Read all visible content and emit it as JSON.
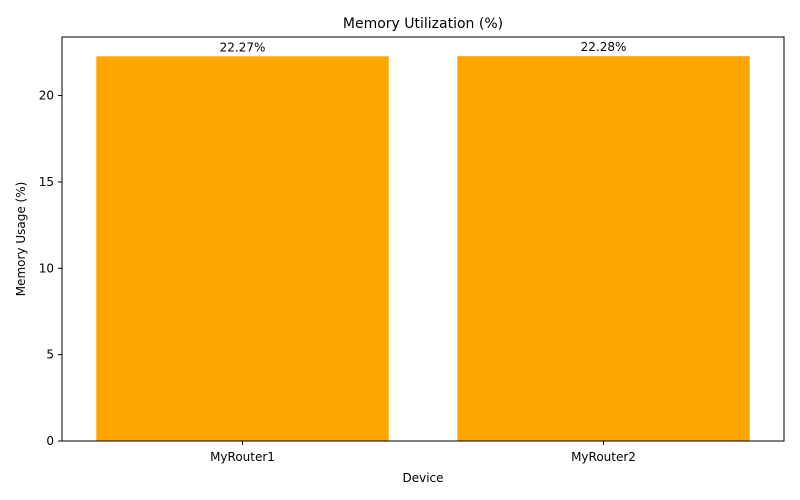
{
  "chart_data": {
    "type": "bar",
    "title": "Memory Utilization (%)",
    "xlabel": "Device",
    "ylabel": "Memory Usage (%)",
    "categories": [
      "MyRouter1",
      "MyRouter2"
    ],
    "values": [
      22.27,
      22.28
    ],
    "data_labels": [
      "22.27%",
      "22.28%"
    ],
    "ylim": [
      0,
      23.39
    ],
    "yticks": [
      0,
      5,
      10,
      15,
      20
    ],
    "bar_color": "#ffa500",
    "grid": false,
    "legend": "none"
  }
}
